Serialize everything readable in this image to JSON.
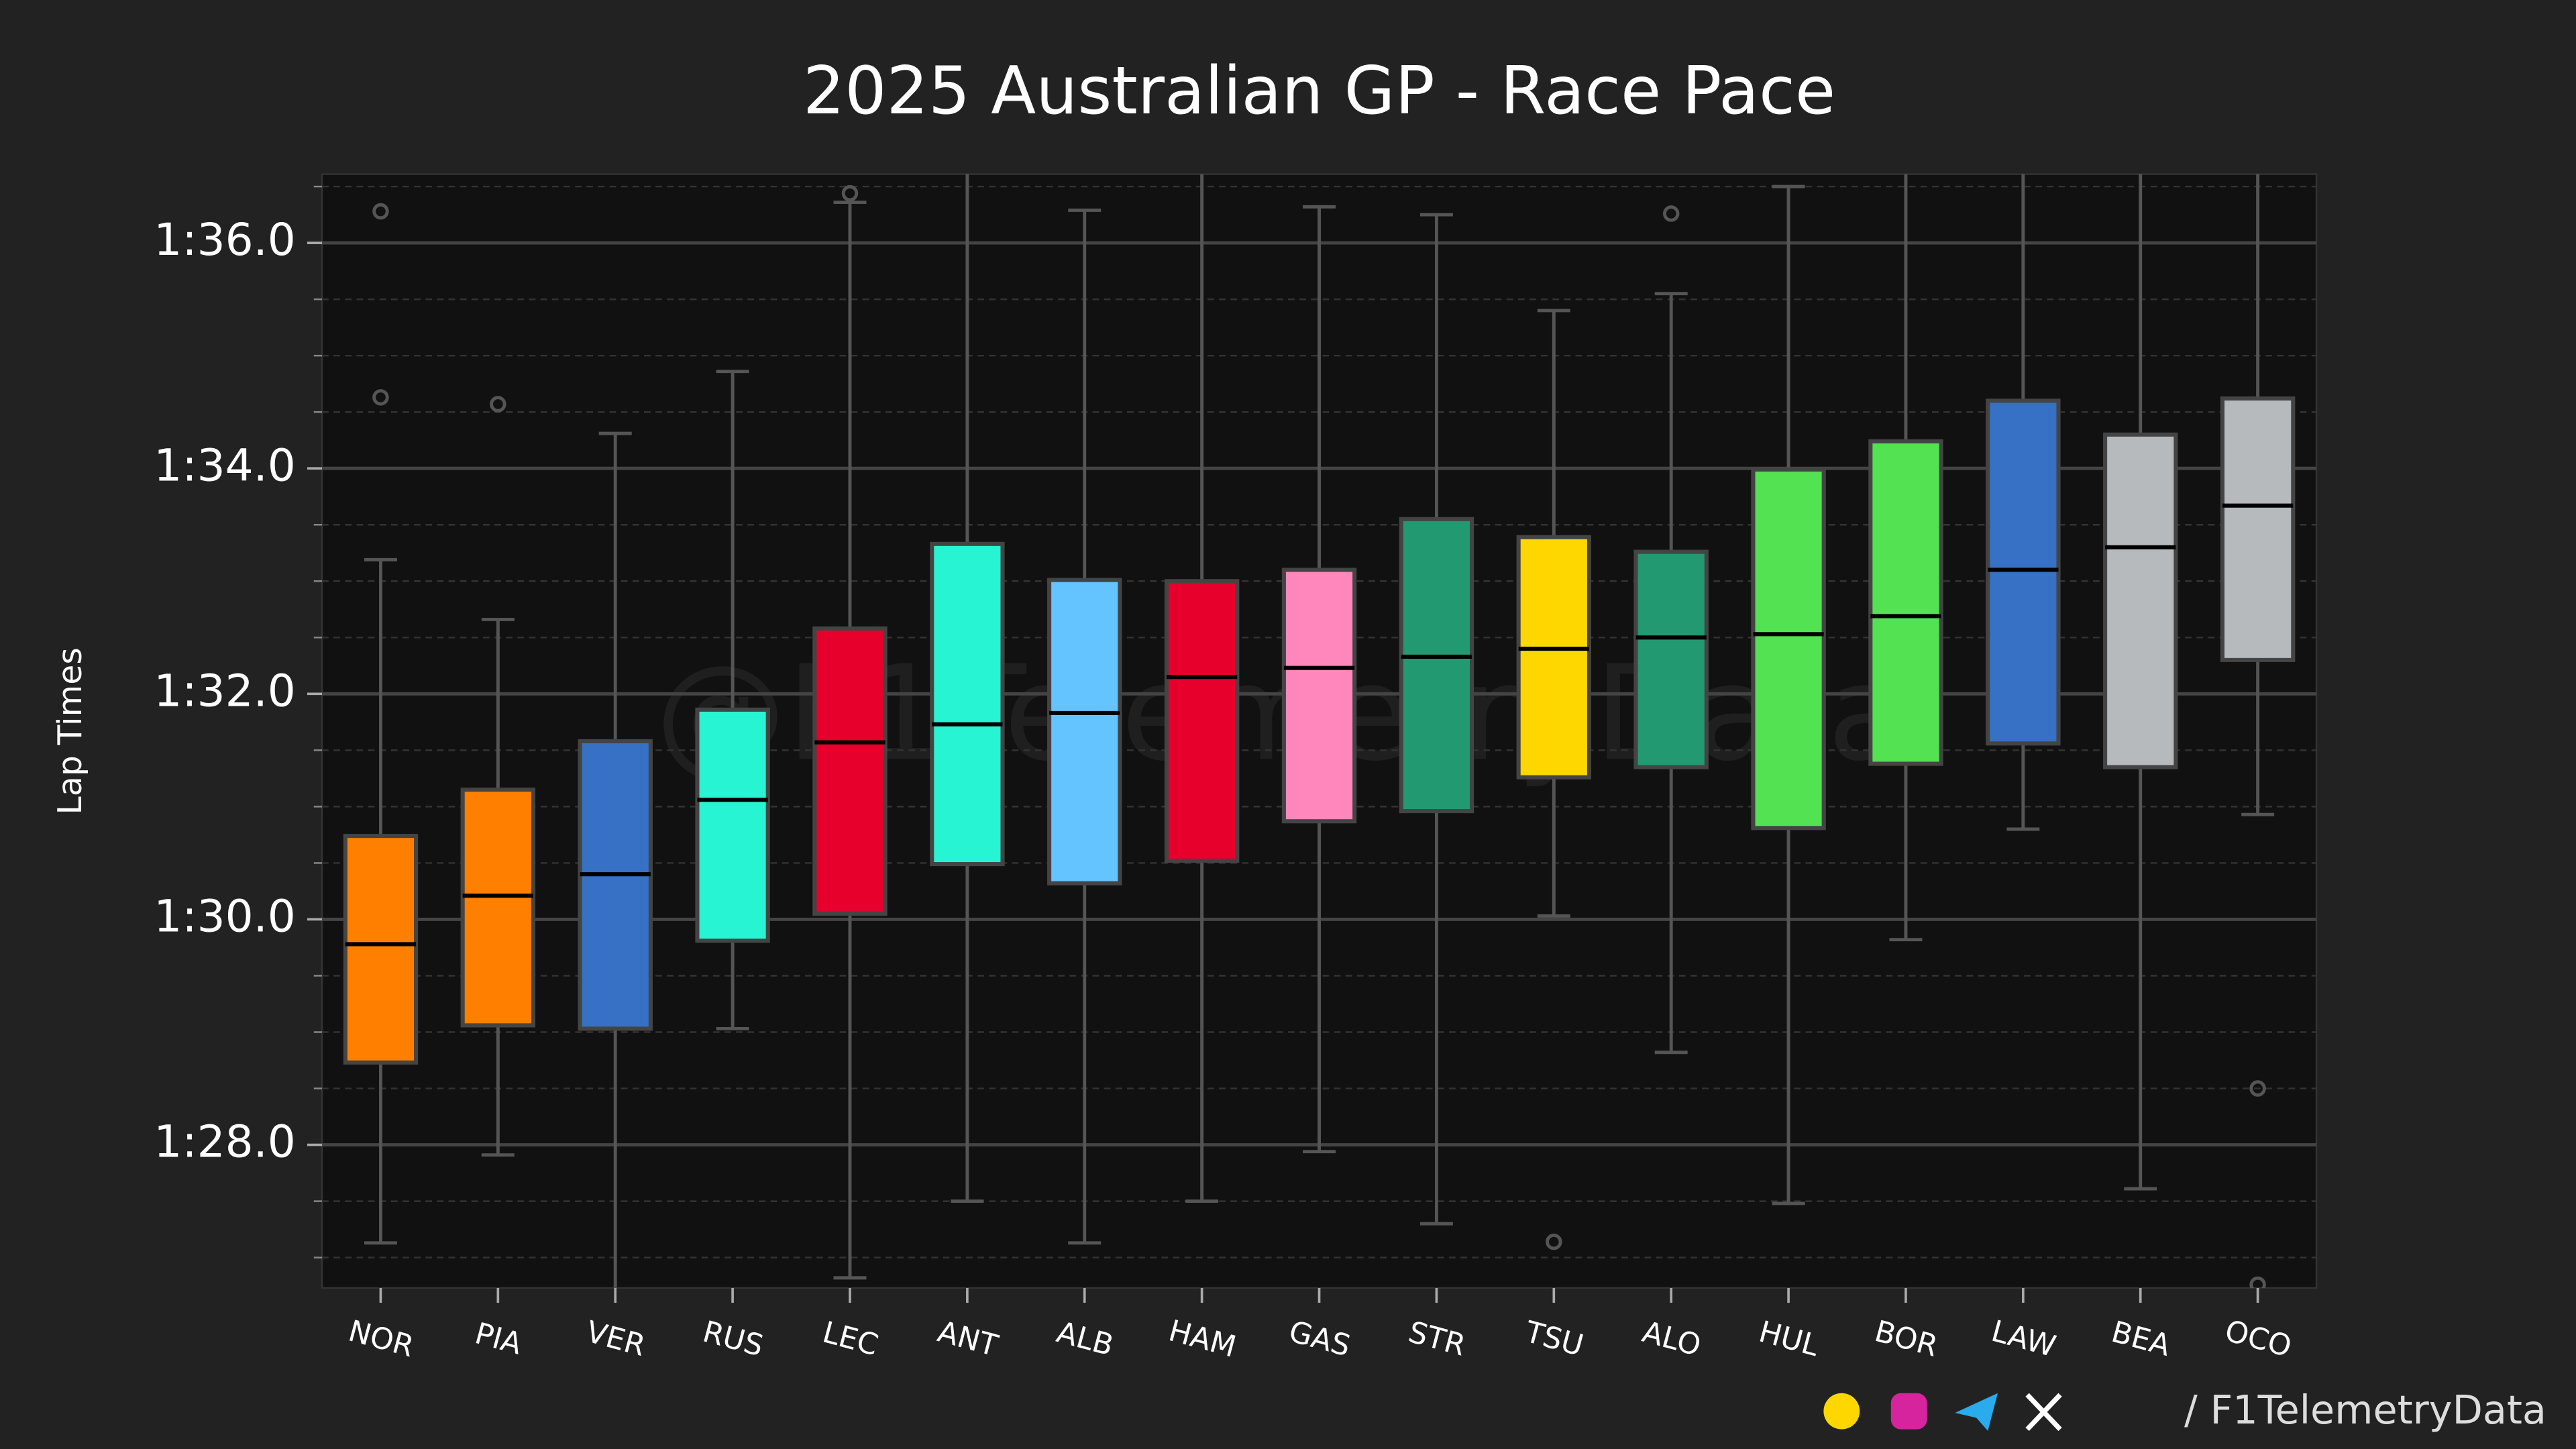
{
  "chart_data": {
    "type": "box",
    "title": "2025 Australian GP - Race Pace",
    "ylabel": "Lap Times",
    "watermark": "@F1TelemetryData",
    "footer": "/ F1TelemetryData",
    "ylim": [
      86.73,
      96.61
    ],
    "yticks": [
      {
        "value": 96,
        "label": "1:36.0"
      },
      {
        "value": 94,
        "label": "1:34.0"
      },
      {
        "value": 92,
        "label": "1:32.0"
      },
      {
        "value": 90,
        "label": "1:30.0"
      },
      {
        "value": 88,
        "label": "1:28.0"
      }
    ],
    "yminorticks": [
      86.5,
      87,
      87.5,
      88.5,
      89,
      89.5,
      90.5,
      91,
      91.5,
      92.5,
      93,
      93.5,
      94.5,
      95,
      95.5,
      96.5
    ],
    "grid": true,
    "categories": [
      "NOR",
      "PIA",
      "VER",
      "RUS",
      "LEC",
      "ANT",
      "ALB",
      "HAM",
      "GAS",
      "STR",
      "TSU",
      "ALO",
      "HUL",
      "BOR",
      "LAW",
      "BEA",
      "OCO"
    ],
    "boxes": [
      {
        "color": "#ff8000",
        "whislo": 87.13,
        "q1": 88.73,
        "med": 89.78,
        "q3": 90.74,
        "whishi": 93.19,
        "fliers": [
          96.28,
          94.63
        ]
      },
      {
        "color": "#ff8000",
        "whislo": 87.91,
        "q1": 89.06,
        "med": 90.21,
        "q3": 91.15,
        "whishi": 92.66,
        "fliers": [
          94.57
        ]
      },
      {
        "color": "#3671c6",
        "whislo": 86.7,
        "q1": 89.03,
        "med": 90.4,
        "q3": 91.58,
        "whishi": 94.31,
        "fliers": []
      },
      {
        "color": "#27f4d2",
        "whislo": 89.03,
        "q1": 89.81,
        "med": 91.06,
        "q3": 91.86,
        "whishi": 94.86,
        "fliers": []
      },
      {
        "color": "#e8002d",
        "whislo": 86.82,
        "q1": 90.05,
        "med": 91.57,
        "q3": 92.58,
        "whishi": 96.36,
        "fliers": [
          96.44
        ]
      },
      {
        "color": "#27f4d2",
        "whislo": 87.5,
        "q1": 90.49,
        "med": 91.73,
        "q3": 93.33,
        "whishi": 96.7,
        "fliers": []
      },
      {
        "color": "#64c4ff",
        "whislo": 87.13,
        "q1": 90.32,
        "med": 91.83,
        "q3": 93.01,
        "whishi": 96.29,
        "fliers": []
      },
      {
        "color": "#e8002d",
        "whislo": 87.5,
        "q1": 90.52,
        "med": 92.15,
        "q3": 93.0,
        "whishi": 96.7,
        "fliers": []
      },
      {
        "color": "#ff87bc",
        "whislo": 87.94,
        "q1": 90.87,
        "med": 92.23,
        "q3": 93.1,
        "whishi": 96.32,
        "fliers": []
      },
      {
        "color": "#229971",
        "whislo": 87.3,
        "q1": 90.96,
        "med": 92.33,
        "q3": 93.55,
        "whishi": 96.25,
        "fliers": []
      },
      {
        "color": "#ffd700",
        "whislo": 90.03,
        "q1": 91.26,
        "med": 92.4,
        "q3": 93.39,
        "whishi": 95.4,
        "fliers": [
          87.14
        ]
      },
      {
        "color": "#229971",
        "whislo": 88.82,
        "q1": 91.35,
        "med": 92.5,
        "q3": 93.26,
        "whishi": 95.55,
        "fliers": [
          96.26
        ]
      },
      {
        "color": "#52e252",
        "whislo": 87.48,
        "q1": 90.81,
        "med": 92.53,
        "q3": 93.99,
        "whishi": 96.5,
        "fliers": []
      },
      {
        "color": "#52e252",
        "whislo": 89.82,
        "q1": 91.38,
        "med": 92.69,
        "q3": 94.24,
        "whishi": 96.7,
        "fliers": []
      },
      {
        "color": "#3671c6",
        "whislo": 90.8,
        "q1": 91.56,
        "med": 93.1,
        "q3": 94.6,
        "whishi": 96.7,
        "fliers": []
      },
      {
        "color": "#b6babd",
        "whislo": 87.61,
        "q1": 91.35,
        "med": 93.3,
        "q3": 94.3,
        "whishi": 96.7,
        "fliers": []
      },
      {
        "color": "#b6babd",
        "whislo": 90.93,
        "q1": 92.3,
        "med": 93.67,
        "q3": 94.62,
        "whishi": 96.7,
        "fliers": [
          88.5,
          86.76
        ]
      }
    ]
  }
}
